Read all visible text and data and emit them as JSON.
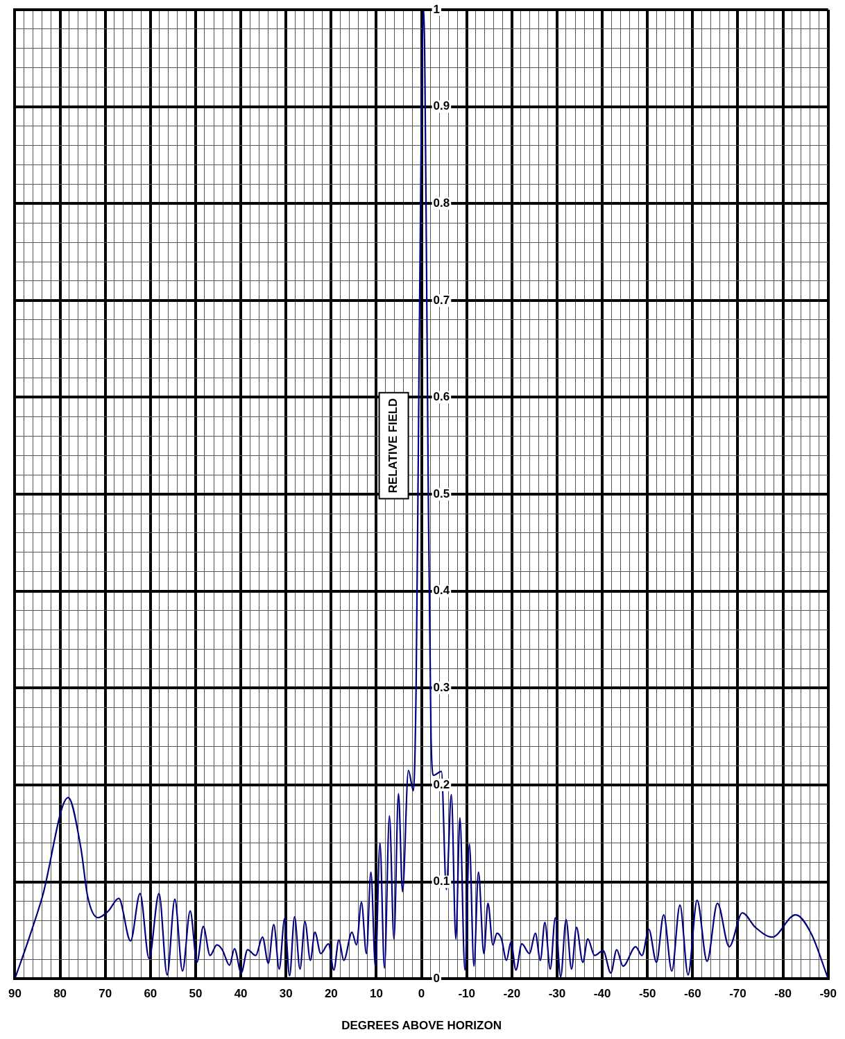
{
  "chart_data": {
    "type": "line",
    "xlabel": "DEGREES ABOVE HORIZON",
    "ylabel": "RELATIVE FIELD",
    "series": [
      {
        "color": "#000080",
        "x": [
          90,
          87,
          83.9,
          78.2,
          75.4,
          73.9,
          71.6,
          69.3,
          67,
          64.4,
          62.3,
          60.3,
          58.1,
          56.3,
          54.6,
          52.9,
          51.2,
          49.7,
          48.3,
          46.8,
          45.3,
          44.1,
          42.5,
          41.4,
          39.9,
          38.5,
          36.7,
          35.2,
          33.9,
          32.7,
          31.5,
          30.3,
          29.2,
          28.1,
          26.9,
          25.8,
          24.6,
          23.6,
          22.3,
          20.6,
          19.4,
          18.3,
          17.2,
          15.4,
          14.4,
          13.3,
          12.2,
          11.2,
          10.2,
          9.2,
          8.2,
          7.1,
          6.1,
          5.1,
          4.2,
          2.9,
          1.8,
          1.2,
          0.6,
          0,
          -0.5,
          -1,
          -1.5,
          -2.1,
          -2.7,
          -4.4,
          -5.5,
          -6.6,
          -7.6,
          -8.5,
          -9.6,
          -10.6,
          -11.6,
          -12.6,
          -13.8,
          -14.7,
          -15.8,
          -16.7,
          -17.7,
          -18.8,
          -19.8,
          -20.9,
          -22.2,
          -23.9,
          -25.2,
          -26.3,
          -27.3,
          -28.5,
          -29.6,
          -30.8,
          -32,
          -33.2,
          -34.3,
          -35.7,
          -36.8,
          -38.3,
          -40.2,
          -41.9,
          -43.2,
          -44.6,
          -47.4,
          -48.8,
          -50.3,
          -52,
          -53.6,
          -55.4,
          -57.2,
          -59,
          -61,
          -63.2,
          -65.5,
          -68.1,
          -71,
          -73.9,
          -77.6,
          -82.8,
          -86.2,
          -90
        ],
        "values": [
          0,
          0.04,
          0.085,
          0.187,
          0.135,
          0.085,
          0.063,
          0.07,
          0.083,
          0.039,
          0.088,
          0.021,
          0.088,
          0.004,
          0.082,
          0.008,
          0.07,
          0.017,
          0.054,
          0.024,
          0.035,
          0.03,
          0.014,
          0.031,
          0.006,
          0.03,
          0.024,
          0.043,
          0.016,
          0.056,
          0.01,
          0.062,
          0.003,
          0.064,
          0.01,
          0.059,
          0.019,
          0.048,
          0.026,
          0.036,
          0.009,
          0.04,
          0.019,
          0.048,
          0.035,
          0.079,
          0.026,
          0.11,
          0.012,
          0.14,
          0.011,
          0.168,
          0.041,
          0.191,
          0.09,
          0.215,
          0.194,
          0.3,
          0.6,
          0.9,
          1,
          0.8,
          0.5,
          0.25,
          0.21,
          0.214,
          0.092,
          0.19,
          0.041,
          0.166,
          0.009,
          0.139,
          0.013,
          0.11,
          0.026,
          0.078,
          0.035,
          0.047,
          0.041,
          0.019,
          0.038,
          0.009,
          0.036,
          0.026,
          0.047,
          0.019,
          0.058,
          0.01,
          0.063,
          0.002,
          0.061,
          0.01,
          0.053,
          0.017,
          0.041,
          0.024,
          0.029,
          0.006,
          0.03,
          0.013,
          0.033,
          0.024,
          0.051,
          0.017,
          0.066,
          0.008,
          0.076,
          0.004,
          0.081,
          0.018,
          0.078,
          0.033,
          0.068,
          0.053,
          0.043,
          0.066,
          0.047,
          0
        ]
      }
    ],
    "xlim": [
      90,
      -90
    ],
    "xticks": [
      90,
      {
        "value": 88,
        "label": null
      },
      {
        "value": 86,
        "label": null
      },
      {
        "value": 84,
        "label": null
      },
      {
        "value": 82,
        "label": null
      },
      80,
      {
        "value": 78,
        "label": null
      },
      {
        "value": 76,
        "label": null
      },
      {
        "value": 74,
        "label": null
      },
      {
        "value": 72,
        "label": null
      },
      70,
      {
        "value": 68,
        "label": null
      },
      {
        "value": 66,
        "label": null
      },
      {
        "value": 64,
        "label": null
      },
      {
        "value": 62,
        "label": null
      },
      60,
      {
        "value": 58,
        "label": null
      },
      {
        "value": 56,
        "label": null
      },
      {
        "value": 54,
        "label": null
      },
      {
        "value": 52,
        "label": null
      },
      50,
      {
        "value": 48,
        "label": null
      },
      {
        "value": 46,
        "label": null
      },
      {
        "value": 44,
        "label": null
      },
      {
        "value": 42,
        "label": null
      },
      40,
      {
        "value": 38,
        "label": null
      },
      {
        "value": 36,
        "label": null
      },
      {
        "value": 34,
        "label": null
      },
      {
        "value": 32,
        "label": null
      },
      30,
      {
        "value": 28,
        "label": null
      },
      {
        "value": 26,
        "label": null
      },
      {
        "value": 24,
        "label": null
      },
      {
        "value": 22,
        "label": null
      },
      20,
      {
        "value": 18,
        "label": null
      },
      {
        "value": 16,
        "label": null
      },
      {
        "value": 14,
        "label": null
      },
      {
        "value": 12,
        "label": null
      },
      10,
      {
        "value": 8,
        "label": null
      },
      {
        "value": 6,
        "label": null
      },
      {
        "value": 4,
        "label": null
      },
      {
        "value": 2,
        "label": null
      },
      0,
      {
        "value": -2,
        "label": null
      },
      {
        "value": -4,
        "label": null
      },
      {
        "value": -6,
        "label": null
      },
      {
        "value": -8,
        "label": null
      },
      -10,
      {
        "value": -12,
        "label": null
      },
      {
        "value": -14,
        "label": null
      },
      {
        "value": -16,
        "label": null
      },
      {
        "value": -18,
        "label": null
      },
      -20,
      {
        "value": -22,
        "label": null
      },
      {
        "value": -24,
        "label": null
      },
      {
        "value": -26,
        "label": null
      },
      {
        "value": -28,
        "label": null
      },
      -30,
      {
        "value": -32,
        "label": null
      },
      {
        "value": -34,
        "label": null
      },
      {
        "value": -36,
        "label": null
      },
      {
        "value": -38,
        "label": null
      },
      -40,
      {
        "value": -42,
        "label": null
      },
      {
        "value": -44,
        "label": null
      },
      {
        "value": -46,
        "label": null
      },
      {
        "value": -48,
        "label": null
      },
      -50,
      {
        "value": -52,
        "label": null
      },
      {
        "value": -54,
        "label": null
      },
      {
        "value": -56,
        "label": null
      },
      {
        "value": -58,
        "label": null
      },
      -60,
      {
        "value": -62,
        "label": null
      },
      {
        "value": -64,
        "label": null
      },
      {
        "value": -66,
        "label": null
      },
      {
        "value": -68,
        "label": null
      },
      -70,
      {
        "value": -72,
        "label": null
      },
      {
        "value": -74,
        "label": null
      },
      {
        "value": -76,
        "label": null
      },
      {
        "value": -78,
        "label": null
      },
      -80,
      {
        "value": -82,
        "label": null
      },
      {
        "value": -84,
        "label": null
      },
      {
        "value": -86,
        "label": null
      },
      {
        "value": -88,
        "label": null
      },
      -90
    ],
    "ylim": [
      0,
      1
    ],
    "yticks": [
      0,
      {
        "value": 0.02,
        "label": null
      },
      {
        "value": 0.04,
        "label": null
      },
      {
        "value": 0.06,
        "label": null
      },
      {
        "value": 0.08,
        "label": null
      },
      0.1,
      {
        "value": 0.12,
        "label": null
      },
      {
        "value": 0.14,
        "label": null
      },
      {
        "value": 0.16,
        "label": null
      },
      {
        "value": 0.18,
        "label": null
      },
      0.2,
      {
        "value": 0.22,
        "label": null
      },
      {
        "value": 0.24,
        "label": null
      },
      {
        "value": 0.26,
        "label": null
      },
      {
        "value": 0.28,
        "label": null
      },
      0.3,
      {
        "value": 0.32,
        "label": null
      },
      {
        "value": 0.34,
        "label": null
      },
      {
        "value": 0.36,
        "label": null
      },
      {
        "value": 0.38,
        "label": null
      },
      0.4,
      {
        "value": 0.42,
        "label": null
      },
      {
        "value": 0.44,
        "label": null
      },
      {
        "value": 0.46,
        "label": null
      },
      {
        "value": 0.48,
        "label": null
      },
      0.5,
      {
        "value": 0.52,
        "label": null
      },
      {
        "value": 0.54,
        "label": null
      },
      {
        "value": 0.56,
        "label": null
      },
      {
        "value": 0.58,
        "label": null
      },
      0.6,
      {
        "value": 0.62,
        "label": null
      },
      {
        "value": 0.64,
        "label": null
      },
      {
        "value": 0.66,
        "label": null
      },
      {
        "value": 0.68,
        "label": null
      },
      0.7,
      {
        "value": 0.72,
        "label": null
      },
      {
        "value": 0.74,
        "label": null
      },
      {
        "value": 0.76,
        "label": null
      },
      {
        "value": 0.78,
        "label": null
      },
      0.8,
      {
        "value": 0.82,
        "label": null
      },
      {
        "value": 0.84,
        "label": null
      },
      {
        "value": 0.86,
        "label": null
      },
      {
        "value": 0.88,
        "label": null
      },
      0.9,
      {
        "value": 0.92,
        "label": null
      },
      {
        "value": 0.94,
        "label": null
      },
      {
        "value": 0.96,
        "label": null
      },
      {
        "value": 0.98,
        "label": null
      },
      1
    ],
    "grid": true,
    "marker": "none",
    "line_style": "solid"
  }
}
